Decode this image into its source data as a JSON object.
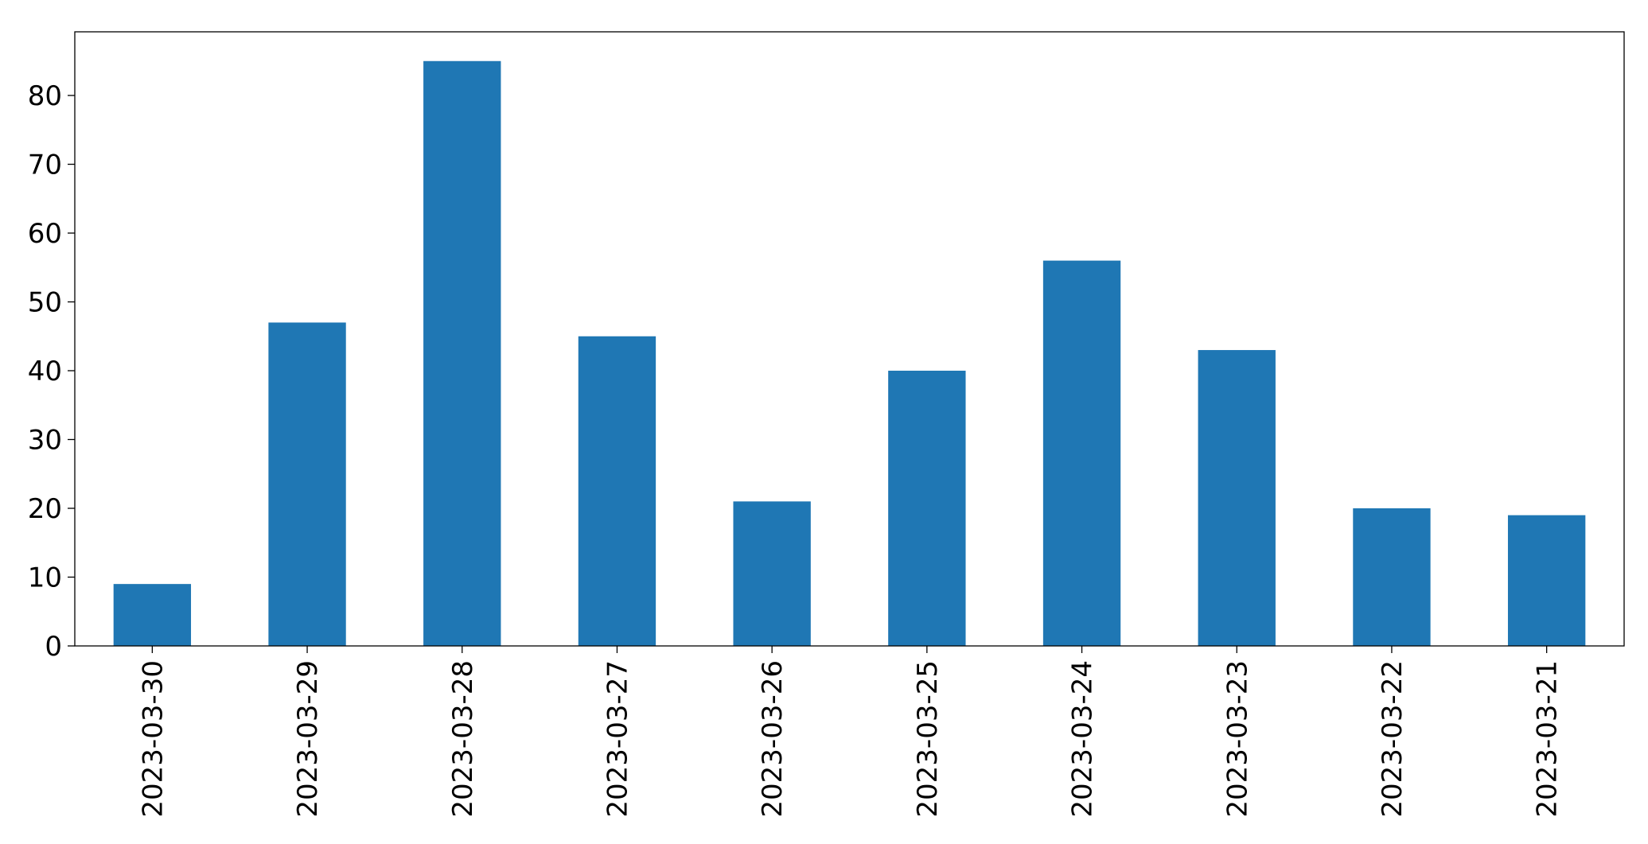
{
  "chart_data": {
    "type": "bar",
    "categories": [
      "2023-03-30",
      "2023-03-29",
      "2023-03-28",
      "2023-03-27",
      "2023-03-26",
      "2023-03-25",
      "2023-03-24",
      "2023-03-23",
      "2023-03-22",
      "2023-03-21"
    ],
    "values": [
      9,
      47,
      85,
      45,
      21,
      40,
      56,
      43,
      20,
      19
    ],
    "color": "#1f77b4",
    "ylim": [
      0,
      89.25
    ],
    "yticks": [
      0,
      10,
      20,
      30,
      40,
      50,
      60,
      70,
      80
    ],
    "grid": false
  }
}
